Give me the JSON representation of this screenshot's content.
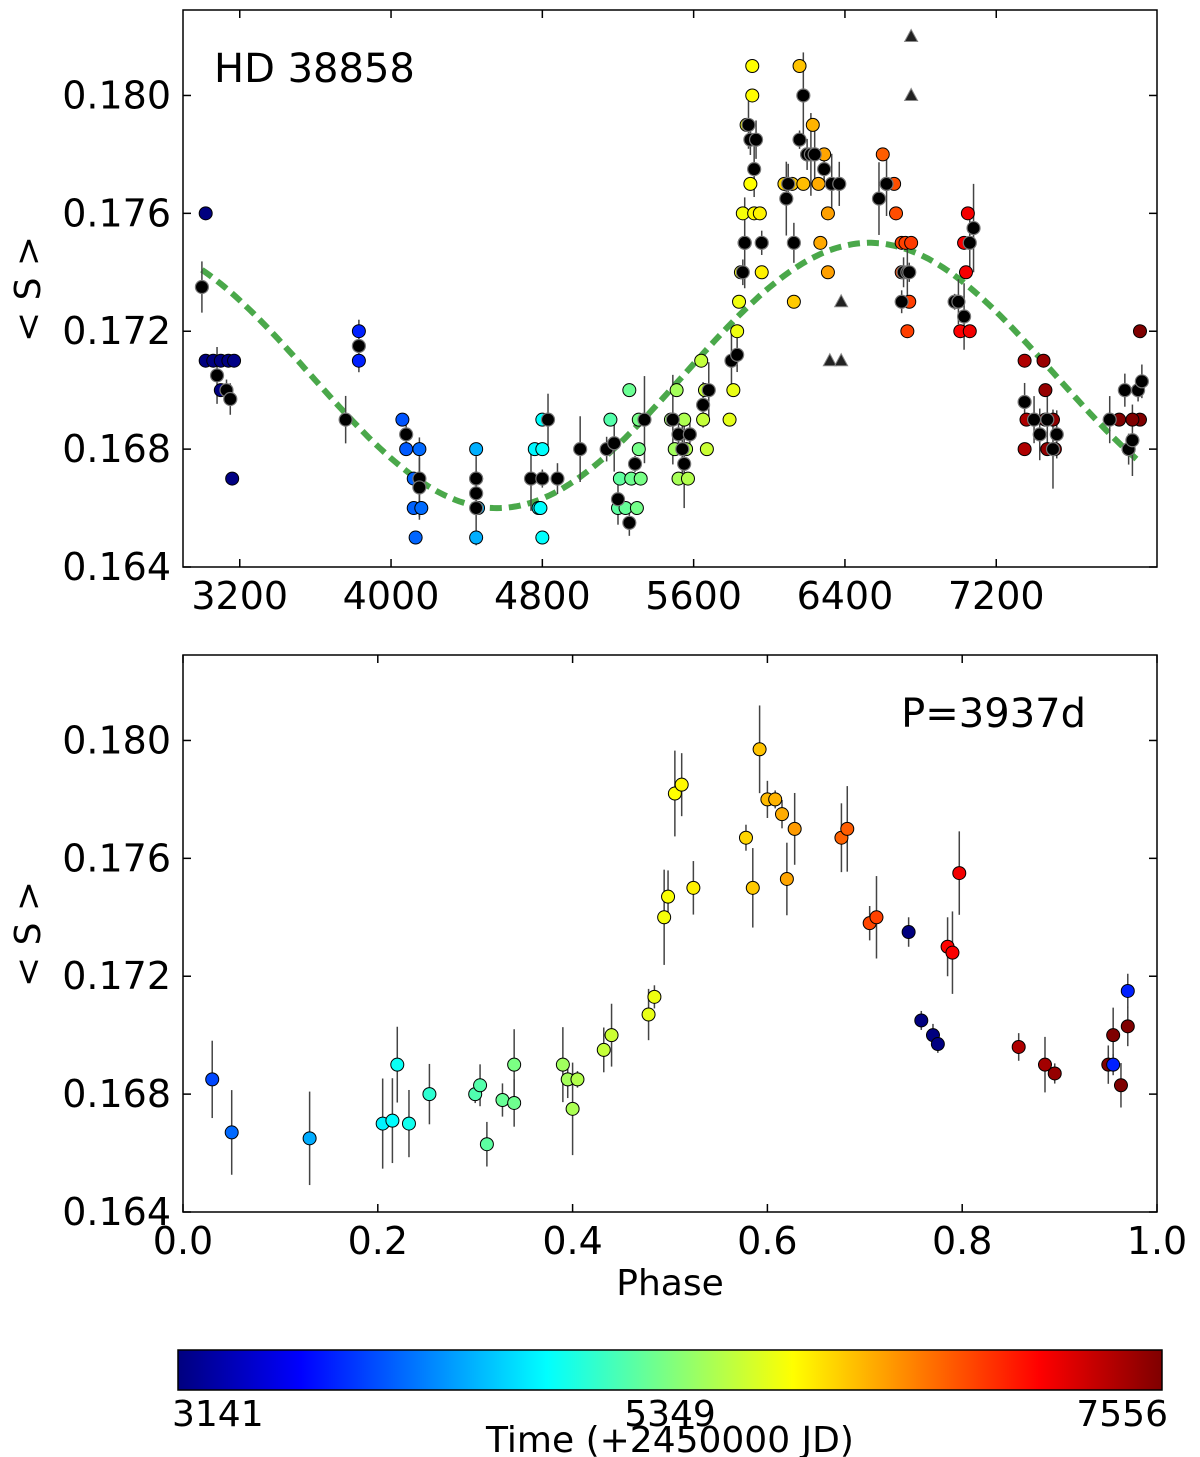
{
  "chart_data": [
    {
      "type": "scatter",
      "annotation": "HD 38858",
      "xlabel": "",
      "ylabel": "< S >",
      "xlim": [
        2900,
        8050
      ],
      "ylim": [
        0.164,
        0.1829
      ],
      "xticks": [
        "3200",
        "4000",
        "4800",
        "5600",
        "6400",
        "7200"
      ],
      "yticks": [
        "0.164",
        "0.168",
        "0.172",
        "0.176",
        "0.180"
      ],
      "fit_color": "#4aa84a",
      "fit": {
        "mean": 0.1705,
        "amplitude": 0.0045,
        "period": 3937,
        "peak_time": 6530
      },
      "black_points": [
        [
          3000,
          0.1735
        ],
        [
          3080,
          0.1705
        ],
        [
          3130,
          0.17
        ],
        [
          3150,
          0.1697
        ],
        [
          3760,
          0.169
        ],
        [
          3830,
          0.1715
        ],
        [
          4080,
          0.1685
        ],
        [
          4150,
          0.167
        ],
        [
          4150,
          0.1667
        ],
        [
          4450,
          0.167
        ],
        [
          4450,
          0.1665
        ],
        [
          4450,
          0.166
        ],
        [
          4740,
          0.167
        ],
        [
          4800,
          0.167
        ],
        [
          4830,
          0.169
        ],
        [
          4880,
          0.167
        ],
        [
          5000,
          0.168
        ],
        [
          5140,
          0.168
        ],
        [
          5180,
          0.1682
        ],
        [
          5200,
          0.1663
        ],
        [
          5260,
          0.1655
        ],
        [
          5290,
          0.1675
        ],
        [
          5340,
          0.169
        ],
        [
          5490,
          0.169
        ],
        [
          5520,
          0.1685
        ],
        [
          5540,
          0.168
        ],
        [
          5550,
          0.1675
        ],
        [
          5580,
          0.1685
        ],
        [
          5650,
          0.1695
        ],
        [
          5680,
          0.17
        ],
        [
          5800,
          0.171
        ],
        [
          5830,
          0.1712
        ],
        [
          5860,
          0.174
        ],
        [
          5870,
          0.175
        ],
        [
          5890,
          0.179
        ],
        [
          5900,
          0.1785
        ],
        [
          5920,
          0.1775
        ],
        [
          5930,
          0.1785
        ],
        [
          5960,
          0.175
        ],
        [
          6090,
          0.1765
        ],
        [
          6100,
          0.177
        ],
        [
          6130,
          0.175
        ],
        [
          6160,
          0.1785
        ],
        [
          6180,
          0.18
        ],
        [
          6200,
          0.178
        ],
        [
          6220,
          0.178
        ],
        [
          6240,
          0.178
        ],
        [
          6290,
          0.1775
        ],
        [
          6330,
          0.177
        ],
        [
          6370,
          0.177
        ],
        [
          6580,
          0.1765
        ],
        [
          6620,
          0.177
        ],
        [
          6700,
          0.173
        ],
        [
          6710,
          0.174
        ],
        [
          6730,
          0.174
        ],
        [
          6740,
          0.174
        ],
        [
          6980,
          0.173
        ],
        [
          7000,
          0.173
        ],
        [
          7030,
          0.1725
        ],
        [
          7060,
          0.175
        ],
        [
          7080,
          0.1755
        ],
        [
          7350,
          0.1696
        ],
        [
          7400,
          0.169
        ],
        [
          7430,
          0.1685
        ],
        [
          7470,
          0.169
        ],
        [
          7500,
          0.168
        ],
        [
          7520,
          0.1685
        ],
        [
          7800,
          0.169
        ],
        [
          7880,
          0.17
        ],
        [
          7900,
          0.168
        ],
        [
          7920,
          0.1683
        ],
        [
          7950,
          0.17
        ],
        [
          7970,
          0.1703
        ]
      ],
      "colored_points": [
        [
          3020,
          0.176
        ],
        [
          3020,
          0.171
        ],
        [
          3060,
          0.171
        ],
        [
          3100,
          0.171
        ],
        [
          3140,
          0.171
        ],
        [
          3170,
          0.171
        ],
        [
          3100,
          0.17
        ],
        [
          3160,
          0.167
        ],
        [
          3830,
          0.172
        ],
        [
          3830,
          0.171
        ],
        [
          4060,
          0.169
        ],
        [
          4080,
          0.168
        ],
        [
          4120,
          0.167
        ],
        [
          4120,
          0.166
        ],
        [
          4130,
          0.165
        ],
        [
          4150,
          0.168
        ],
        [
          4160,
          0.166
        ],
        [
          4450,
          0.168
        ],
        [
          4450,
          0.165
        ],
        [
          4450,
          0.167
        ],
        [
          4460,
          0.166
        ],
        [
          4760,
          0.168
        ],
        [
          4780,
          0.166
        ],
        [
          4800,
          0.165
        ],
        [
          4800,
          0.169
        ],
        [
          4800,
          0.168
        ],
        [
          4790,
          0.166
        ],
        [
          5160,
          0.169
        ],
        [
          5200,
          0.166
        ],
        [
          5210,
          0.167
        ],
        [
          5240,
          0.166
        ],
        [
          5260,
          0.17
        ],
        [
          5270,
          0.167
        ],
        [
          5300,
          0.166
        ],
        [
          5310,
          0.168
        ],
        [
          5320,
          0.167
        ],
        [
          5310,
          0.169
        ],
        [
          5480,
          0.169
        ],
        [
          5500,
          0.168
        ],
        [
          5510,
          0.17
        ],
        [
          5520,
          0.167
        ],
        [
          5550,
          0.169
        ],
        [
          5560,
          0.168
        ],
        [
          5570,
          0.167
        ],
        [
          5640,
          0.171
        ],
        [
          5650,
          0.169
        ],
        [
          5670,
          0.168
        ],
        [
          5660,
          0.17
        ],
        [
          5790,
          0.169
        ],
        [
          5810,
          0.17
        ],
        [
          5830,
          0.172
        ],
        [
          5840,
          0.173
        ],
        [
          5850,
          0.174
        ],
        [
          5860,
          0.176
        ],
        [
          5870,
          0.175
        ],
        [
          5880,
          0.179
        ],
        [
          5900,
          0.177
        ],
        [
          5910,
          0.181
        ],
        [
          5910,
          0.18
        ],
        [
          5920,
          0.176
        ],
        [
          5960,
          0.174
        ],
        [
          5950,
          0.176
        ],
        [
          6080,
          0.177
        ],
        [
          6120,
          0.177
        ],
        [
          6130,
          0.173
        ],
        [
          6160,
          0.181
        ],
        [
          6180,
          0.177
        ],
        [
          6200,
          0.178
        ],
        [
          6230,
          0.179
        ],
        [
          6260,
          0.177
        ],
        [
          6270,
          0.175
        ],
        [
          6290,
          0.178
        ],
        [
          6310,
          0.174
        ],
        [
          6310,
          0.176
        ],
        [
          6600,
          0.178
        ],
        [
          6620,
          0.177
        ],
        [
          6660,
          0.177
        ],
        [
          6670,
          0.176
        ],
        [
          6700,
          0.174
        ],
        [
          6700,
          0.175
        ],
        [
          6720,
          0.175
        ],
        [
          6730,
          0.172
        ],
        [
          6740,
          0.173
        ],
        [
          6750,
          0.175
        ],
        [
          6990,
          0.173
        ],
        [
          7010,
          0.172
        ],
        [
          7030,
          0.175
        ],
        [
          7050,
          0.176
        ],
        [
          7040,
          0.174
        ],
        [
          7060,
          0.172
        ],
        [
          7350,
          0.171
        ],
        [
          7350,
          0.168
        ],
        [
          7360,
          0.169
        ],
        [
          7450,
          0.171
        ],
        [
          7460,
          0.17
        ],
        [
          7460,
          0.169
        ],
        [
          7470,
          0.168
        ],
        [
          7500,
          0.169
        ],
        [
          7510,
          0.168
        ],
        [
          7850,
          0.169
        ],
        [
          7900,
          0.168
        ],
        [
          7960,
          0.172
        ],
        [
          7960,
          0.169
        ],
        [
          7920,
          0.169
        ]
      ],
      "triangles": [
        [
          6750,
          0.182
        ],
        [
          6750,
          0.18
        ],
        [
          6380,
          0.173
        ],
        [
          6320,
          0.171
        ],
        [
          6380,
          0.171
        ]
      ]
    },
    {
      "type": "scatter",
      "annotation": "P=3937d",
      "xlabel": "Phase",
      "ylabel": "< S >",
      "xlim": [
        0.0,
        1.0
      ],
      "ylim": [
        0.164,
        0.1829
      ],
      "xticks": [
        "0.0",
        "0.2",
        "0.4",
        "0.6",
        "0.8",
        "1.0"
      ],
      "yticks": [
        "0.164",
        "0.168",
        "0.172",
        "0.176",
        "0.180"
      ],
      "points": [
        [
          0.03,
          0.1685,
          4000
        ],
        [
          0.05,
          0.1667,
          4150
        ],
        [
          0.13,
          0.1665,
          4440
        ],
        [
          0.205,
          0.167,
          4740
        ],
        [
          0.215,
          0.1671,
          4790
        ],
        [
          0.22,
          0.169,
          4840
        ],
        [
          0.232,
          0.167,
          4870
        ],
        [
          0.253,
          0.168,
          4990
        ],
        [
          0.3,
          0.168,
          5140
        ],
        [
          0.305,
          0.1683,
          5160
        ],
        [
          0.312,
          0.1663,
          5200
        ],
        [
          0.328,
          0.1678,
          5250
        ],
        [
          0.34,
          0.1677,
          5280
        ],
        [
          0.34,
          0.169,
          5330
        ],
        [
          0.39,
          0.169,
          5490
        ],
        [
          0.395,
          0.1685,
          5510
        ],
        [
          0.4,
          0.1675,
          5540
        ],
        [
          0.405,
          0.1685,
          5570
        ],
        [
          0.432,
          0.1695,
          5650
        ],
        [
          0.44,
          0.17,
          5680
        ],
        [
          0.478,
          0.1707,
          5800
        ],
        [
          0.484,
          0.1713,
          5830
        ],
        [
          0.494,
          0.174,
          5860
        ],
        [
          0.498,
          0.1747,
          5880
        ],
        [
          0.505,
          0.1782,
          5900
        ],
        [
          0.512,
          0.1785,
          5930
        ],
        [
          0.524,
          0.175,
          5960
        ],
        [
          0.578,
          0.1767,
          6080
        ],
        [
          0.585,
          0.175,
          6130
        ],
        [
          0.592,
          0.1797,
          6160
        ],
        [
          0.6,
          0.178,
          6200
        ],
        [
          0.608,
          0.178,
          6230
        ],
        [
          0.615,
          0.1775,
          6260
        ],
        [
          0.62,
          0.1753,
          6290
        ],
        [
          0.628,
          0.177,
          6330
        ],
        [
          0.676,
          0.1767,
          6580
        ],
        [
          0.682,
          0.177,
          6600
        ],
        [
          0.705,
          0.1738,
          6700
        ],
        [
          0.712,
          0.174,
          6720
        ],
        [
          0.745,
          0.1735,
          3020
        ],
        [
          0.758,
          0.1705,
          3080
        ],
        [
          0.77,
          0.17,
          3130
        ],
        [
          0.775,
          0.1697,
          3150
        ],
        [
          0.785,
          0.173,
          6990
        ],
        [
          0.79,
          0.1728,
          7030
        ],
        [
          0.797,
          0.1755,
          7060
        ],
        [
          0.858,
          0.1696,
          7350
        ],
        [
          0.885,
          0.169,
          7400
        ],
        [
          0.895,
          0.1687,
          7460
        ],
        [
          0.95,
          0.169,
          7880
        ],
        [
          0.955,
          0.17,
          7900
        ],
        [
          0.955,
          0.169,
          3830
        ],
        [
          0.963,
          0.1683,
          7920
        ],
        [
          0.97,
          0.1715,
          3830
        ],
        [
          0.97,
          0.1703,
          7970
        ]
      ]
    }
  ],
  "colorbar": {
    "min": 3141,
    "max": 7556,
    "tick_labels": [
      "3141",
      "5349",
      "7556"
    ],
    "label": "Time (+2450000 JD)",
    "colormap": [
      "#00007f",
      "#0000ff",
      "#007fff",
      "#00ffff",
      "#7fff7f",
      "#ffff00",
      "#ff7f00",
      "#ff0000",
      "#7f0000"
    ]
  }
}
